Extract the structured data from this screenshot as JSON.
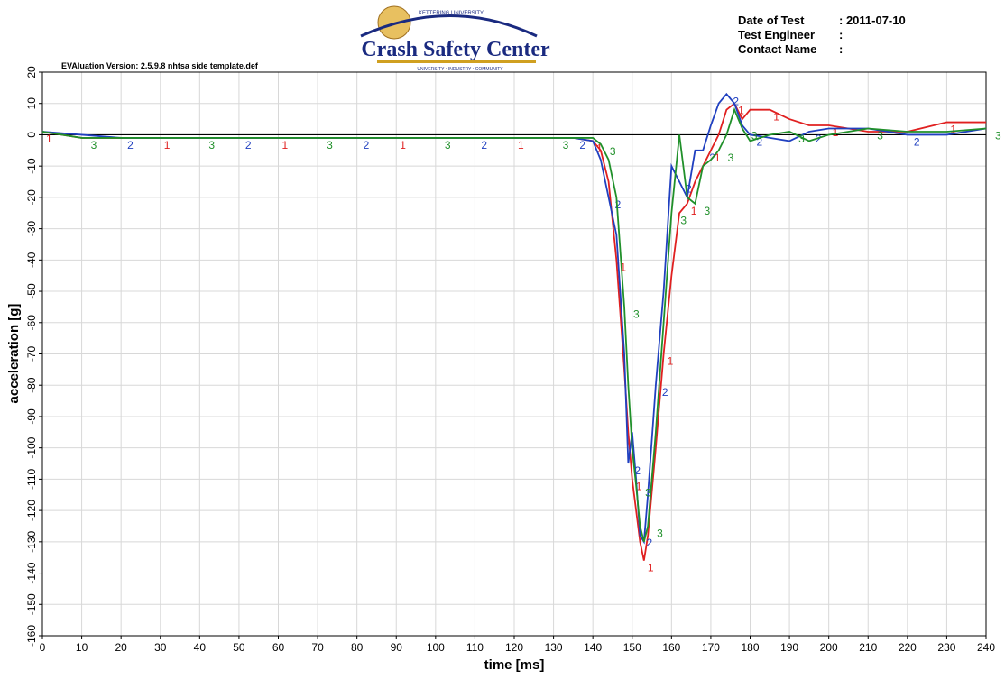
{
  "header": {
    "logo_top": "KETTERING UNIVERSITY",
    "logo_title": "Crash Safety Center",
    "logo_bottom": "UNIVERSITY • INDUSTRY • COMMUNITY",
    "fields": [
      {
        "label": "Date of Test",
        "value": ": 2011-07-10"
      },
      {
        "label": "Test Engineer",
        "value": ":"
      },
      {
        "label": "Contact Name",
        "value": ":"
      }
    ],
    "version": "EVAluation Version: 2.5.9.8 nhtsa side template.def"
  },
  "chart_data": {
    "type": "line",
    "xlabel": "time [ms]",
    "ylabel": "acceleration [g]",
    "x": [
      0,
      10,
      20,
      30,
      40,
      50,
      60,
      70,
      80,
      90,
      100,
      110,
      120,
      130,
      135,
      140,
      142,
      144,
      146,
      148,
      149,
      150,
      151,
      152,
      153,
      154,
      156,
      158,
      160,
      162,
      164,
      166,
      168,
      170,
      172,
      174,
      176,
      178,
      180,
      185,
      190,
      195,
      200,
      210,
      220,
      230,
      240
    ],
    "series": [
      {
        "name": "1",
        "color": "#e02020",
        "values": [
          1,
          -1,
          -1,
          -1,
          -1,
          -1,
          -1,
          -1,
          -1,
          -1,
          -1,
          -1,
          -1,
          -1,
          -1,
          -2,
          -5,
          -15,
          -40,
          -75,
          -95,
          -110,
          -120,
          -130,
          -136,
          -128,
          -100,
          -70,
          -45,
          -25,
          -22,
          -15,
          -10,
          -5,
          0,
          8,
          10,
          5,
          8,
          8,
          5,
          3,
          3,
          1,
          1,
          4,
          4
        ]
      },
      {
        "name": "2",
        "color": "#2040c0",
        "values": [
          1,
          0,
          -1,
          -1,
          -1,
          -1,
          -1,
          -1,
          -1,
          -1,
          -1,
          -1,
          -1,
          -1,
          -1,
          -2,
          -8,
          -20,
          -32,
          -70,
          -105,
          -95,
          -110,
          -128,
          -130,
          -115,
          -80,
          -50,
          -10,
          -15,
          -20,
          -5,
          -5,
          3,
          10,
          13,
          10,
          3,
          0,
          -1,
          -2,
          1,
          2,
          2,
          0,
          0,
          2
        ]
      },
      {
        "name": "3",
        "color": "#20902a",
        "values": [
          1,
          -1,
          -1,
          -1,
          -1,
          -1,
          -1,
          -1,
          -1,
          -1,
          -1,
          -1,
          -1,
          -1,
          -1,
          -1,
          -3,
          -8,
          -20,
          -55,
          -80,
          -100,
          -112,
          -125,
          -130,
          -125,
          -95,
          -60,
          -25,
          0,
          -20,
          -22,
          -10,
          -8,
          -5,
          0,
          8,
          2,
          -2,
          0,
          1,
          -2,
          0,
          2,
          1,
          1,
          2
        ]
      }
    ],
    "xlim": [
      0,
      240
    ],
    "xticks": [
      0,
      10,
      20,
      30,
      40,
      50,
      60,
      70,
      80,
      90,
      100,
      110,
      120,
      130,
      140,
      150,
      160,
      170,
      180,
      190,
      200,
      210,
      220,
      230,
      240
    ],
    "ylim": [
      -160,
      20
    ],
    "yticks": [
      -160,
      -150,
      -140,
      -130,
      -120,
      -110,
      -100,
      -90,
      -80,
      -70,
      -60,
      -50,
      -40,
      -30,
      -20,
      -10,
      0,
      10,
      20
    ],
    "grid": true
  }
}
